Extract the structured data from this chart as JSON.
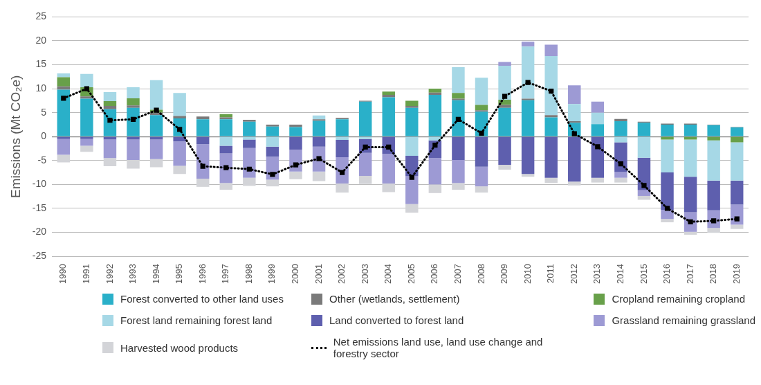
{
  "chart_data": {
    "type": "bar",
    "ylabel": "Emissions (Mt CO₂e)",
    "stacked": true,
    "grid": "y",
    "legend": "bottom",
    "line_style": "dotted",
    "marker": "square",
    "categories": [
      "1990",
      "1991",
      "1992",
      "1993",
      "1994",
      "1995",
      "1996",
      "1997",
      "1998",
      "1999",
      "2000",
      "2001",
      "2002",
      "2003",
      "2004",
      "2005",
      "2006",
      "2007",
      "2008",
      "2009",
      "2010",
      "2011",
      "2012",
      "2013",
      "2014",
      "2015",
      "2016",
      "2017",
      "2018",
      "2019"
    ],
    "ylim": [
      -25,
      25
    ],
    "yticks": [
      -25,
      -20,
      -15,
      -10,
      -5,
      0,
      5,
      10,
      15,
      20,
      25
    ],
    "series": [
      {
        "name": "Forest converted to other land uses",
        "color": "#2ab0c9",
        "values": [
          9.8,
          7.9,
          5.7,
          6.0,
          4.5,
          3.8,
          3.6,
          3.6,
          3.1,
          2.1,
          2.0,
          3.3,
          3.6,
          7.3,
          8.2,
          6.0,
          8.7,
          7.6,
          5.2,
          6.0,
          7.6,
          4.0,
          2.9,
          2.6,
          3.2,
          2.9,
          2.5,
          2.5,
          2.4,
          1.9
        ]
      },
      {
        "name": "Other (wetlands, settlement)",
        "color": "#7a7a7a",
        "values": [
          0.7,
          0.5,
          0.7,
          0.5,
          0.5,
          0.5,
          0.6,
          0.4,
          0.4,
          0.4,
          0.5,
          0.3,
          0.3,
          0.2,
          0.5,
          0.4,
          0.5,
          0.3,
          0.3,
          0.6,
          0.3,
          0.5,
          0.3,
          null,
          0.5,
          0.2,
          0.2,
          0.2,
          0.1,
          0.1
        ]
      },
      {
        "name": "Cropland remaining cropland",
        "color": "#68a04a",
        "values": [
          1.9,
          1.9,
          1.0,
          1.5,
          0.6,
          null,
          null,
          0.7,
          null,
          null,
          null,
          null,
          null,
          null,
          0.7,
          1.1,
          0.8,
          1.2,
          1.1,
          1.1,
          null,
          null,
          null,
          null,
          null,
          null,
          -0.6,
          -0.6,
          -0.8,
          -1.2
        ]
      },
      {
        "name": "Forest land remaining forest land",
        "color": "#a6d8e6",
        "values": [
          0.8,
          2.8,
          1.9,
          2.3,
          6.2,
          4.8,
          null,
          -1.9,
          -0.6,
          -2.1,
          null,
          0.8,
          -0.7,
          -0.5,
          null,
          -4.0,
          -0.8,
          5.4,
          5.7,
          7.1,
          10.9,
          12.3,
          3.6,
          2.4,
          -1.2,
          -4.4,
          -6.9,
          -7.8,
          -8.4,
          -8.0
        ]
      },
      {
        "name": "Land converted to forest land",
        "color": "#5e5fae",
        "values": [
          -0.5,
          -0.5,
          -0.6,
          -0.6,
          -0.6,
          -1.0,
          -1.6,
          -1.6,
          -1.8,
          -2.1,
          -2.7,
          -2.1,
          -3.6,
          -2.9,
          -3.6,
          -4.3,
          -3.7,
          -4.9,
          -6.3,
          -5.9,
          -7.8,
          -8.6,
          -9.4,
          -8.6,
          -6.2,
          -6.8,
          -7.8,
          -7.4,
          -6.2,
          -5.0
        ]
      },
      {
        "name": "Grassland remaining grassland",
        "color": "#9d9ad4",
        "values": [
          -3.3,
          -1.4,
          -3.9,
          -4.3,
          -4.1,
          -5.1,
          -7.2,
          -6.2,
          -6.2,
          -4.8,
          -4.6,
          -5.2,
          -5.5,
          -4.8,
          -6.2,
          -5.8,
          -5.5,
          -4.8,
          -4.1,
          0.8,
          1.0,
          2.4,
          3.9,
          2.3,
          -1.2,
          -1.2,
          -1.9,
          -4.1,
          -3.7,
          -4.2
        ]
      },
      {
        "name": "Harvested wood products",
        "color": "#d3d4d8",
        "values": [
          -1.6,
          -1.3,
          -1.7,
          -1.8,
          -1.7,
          -1.7,
          -1.7,
          -1.4,
          -1.7,
          -1.4,
          -1.6,
          -2.0,
          -1.9,
          -1.7,
          -1.8,
          -1.8,
          -1.8,
          -1.4,
          -1.3,
          -1.0,
          -0.6,
          -1.1,
          -0.8,
          -1.0,
          -1.0,
          -0.8,
          -0.7,
          -0.6,
          -1.0,
          -0.9
        ]
      },
      {
        "name": "Net emissions land use, land use change and forestry sector",
        "type": "line",
        "color": "#000000",
        "values": [
          8.0,
          10.0,
          3.4,
          3.6,
          5.5,
          1.5,
          -6.2,
          -6.5,
          -6.8,
          -7.9,
          -5.9,
          -4.6,
          -7.5,
          -2.2,
          -2.2,
          -8.5,
          -1.8,
          3.6,
          0.7,
          8.4,
          11.3,
          9.5,
          0.6,
          -2.1,
          -5.7,
          -10.2,
          -15.0,
          -17.8,
          -17.6,
          -17.2
        ]
      }
    ]
  }
}
